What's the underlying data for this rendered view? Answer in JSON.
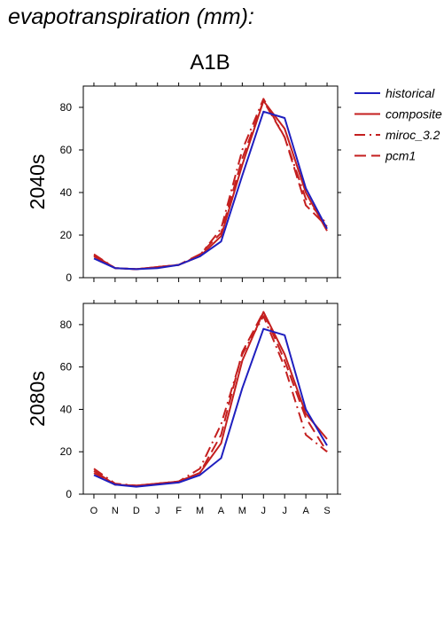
{
  "page": {
    "title": "evapotranspiration (mm):",
    "scenario": "A1B"
  },
  "colors": {
    "historical": "#1f1fbf",
    "composite": "#c41f1f",
    "miroc_3.2": "#c41f1f",
    "pcm1": "#c41f1f",
    "axis": "#000000",
    "background": "#ffffff"
  },
  "legend": {
    "placement": "top-right",
    "entries": [
      {
        "name": "historical",
        "style": "solid"
      },
      {
        "name": "composite",
        "style": "solid"
      },
      {
        "name": "miroc_3.2",
        "style": "dashdot"
      },
      {
        "name": "pcm1",
        "style": "dash"
      }
    ]
  },
  "chart_data": [
    {
      "type": "line",
      "panel_label": "2040s",
      "categories": [
        "O",
        "N",
        "D",
        "J",
        "F",
        "M",
        "A",
        "M",
        "J",
        "J",
        "A",
        "S"
      ],
      "ylim": [
        0,
        90
      ],
      "yticks": [
        0,
        20,
        40,
        60,
        80
      ],
      "show_x_tick_labels": false,
      "grid": false,
      "series": [
        {
          "name": "historical",
          "style": "solid",
          "values": [
            9,
            4.5,
            4,
            4.5,
            6,
            10,
            17,
            48,
            78,
            75,
            42,
            23
          ]
        },
        {
          "name": "composite",
          "style": "solid",
          "values": [
            10.5,
            4.5,
            4,
            5,
            6,
            10,
            19.5,
            53,
            83,
            70,
            40,
            22
          ]
        },
        {
          "name": "miroc_3.2",
          "style": "dashdot",
          "values": [
            11,
            4.5,
            4,
            5,
            6,
            10.5,
            23,
            60,
            84,
            66,
            37,
            25
          ]
        },
        {
          "name": "pcm1",
          "style": "dash",
          "values": [
            10,
            4.5,
            4,
            5,
            6,
            11,
            21,
            56,
            83,
            66,
            34,
            24
          ]
        }
      ]
    },
    {
      "type": "line",
      "panel_label": "2080s",
      "categories": [
        "O",
        "N",
        "D",
        "J",
        "F",
        "M",
        "A",
        "M",
        "J",
        "J",
        "A",
        "S"
      ],
      "ylim": [
        0,
        90
      ],
      "yticks": [
        0,
        20,
        40,
        60,
        80
      ],
      "show_x_tick_labels": true,
      "grid": false,
      "series": [
        {
          "name": "historical",
          "style": "solid",
          "values": [
            9,
            4.5,
            3.5,
            4.5,
            5.5,
            9,
            17,
            50,
            78,
            75,
            40,
            23
          ]
        },
        {
          "name": "composite",
          "style": "solid",
          "values": [
            11,
            4.5,
            4,
            5,
            6,
            10,
            24,
            63,
            86,
            66,
            38,
            26
          ]
        },
        {
          "name": "miroc_3.2",
          "style": "dashdot",
          "values": [
            12,
            5,
            4,
            5,
            6,
            12,
            33,
            66,
            84,
            60,
            28,
            20
          ]
        },
        {
          "name": "pcm1",
          "style": "dash",
          "values": [
            10,
            4.5,
            4,
            5,
            6,
            10,
            28,
            67,
            86,
            63,
            36,
            20
          ]
        }
      ]
    }
  ]
}
